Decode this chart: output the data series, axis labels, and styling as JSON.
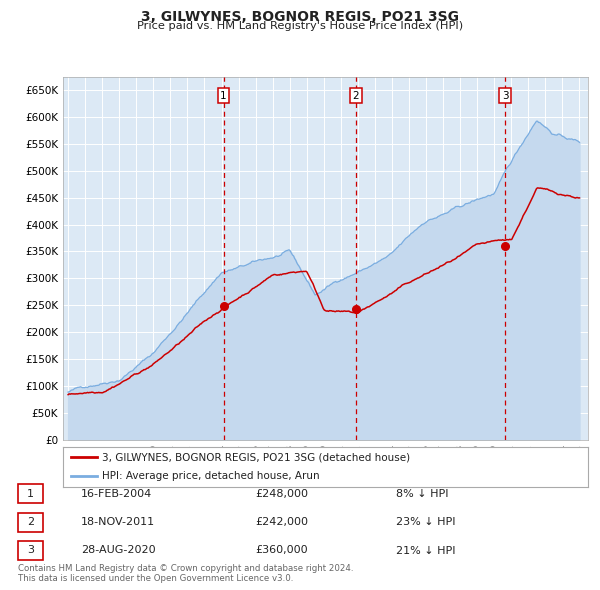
{
  "title": "3, GILWYNES, BOGNOR REGIS, PO21 3SG",
  "subtitle": "Price paid vs. HM Land Registry's House Price Index (HPI)",
  "red_label": "3, GILWYNES, BOGNOR REGIS, PO21 3SG (detached house)",
  "blue_label": "HPI: Average price, detached house, Arun",
  "footer": "Contains HM Land Registry data © Crown copyright and database right 2024.\nThis data is licensed under the Open Government Licence v3.0.",
  "transactions": [
    {
      "num": 1,
      "date": "16-FEB-2004",
      "price": "£248,000",
      "pct": "8% ↓ HPI",
      "year": 2004.12,
      "value": 248000
    },
    {
      "num": 2,
      "date": "18-NOV-2011",
      "price": "£242,000",
      "pct": "23% ↓ HPI",
      "year": 2011.88,
      "value": 242000
    },
    {
      "num": 3,
      "date": "28-AUG-2020",
      "price": "£360,000",
      "pct": "21% ↓ HPI",
      "year": 2020.65,
      "value": 360000
    }
  ],
  "ylim": [
    0,
    675000
  ],
  "yticks": [
    0,
    50000,
    100000,
    150000,
    200000,
    250000,
    300000,
    350000,
    400000,
    450000,
    500000,
    550000,
    600000,
    650000
  ],
  "ytick_labels": [
    "£0",
    "£50K",
    "£100K",
    "£150K",
    "£200K",
    "£250K",
    "£300K",
    "£350K",
    "£400K",
    "£450K",
    "£500K",
    "£550K",
    "£600K",
    "£650K"
  ],
  "xlim_start": 1994.7,
  "xlim_end": 2025.5,
  "background_color": "#ffffff",
  "plot_bg_color": "#dce9f5",
  "grid_color": "#ffffff",
  "red_color": "#cc0000",
  "blue_color": "#7aade0",
  "blue_fill_color": "#c5d9ee",
  "dashed_color": "#cc0000"
}
